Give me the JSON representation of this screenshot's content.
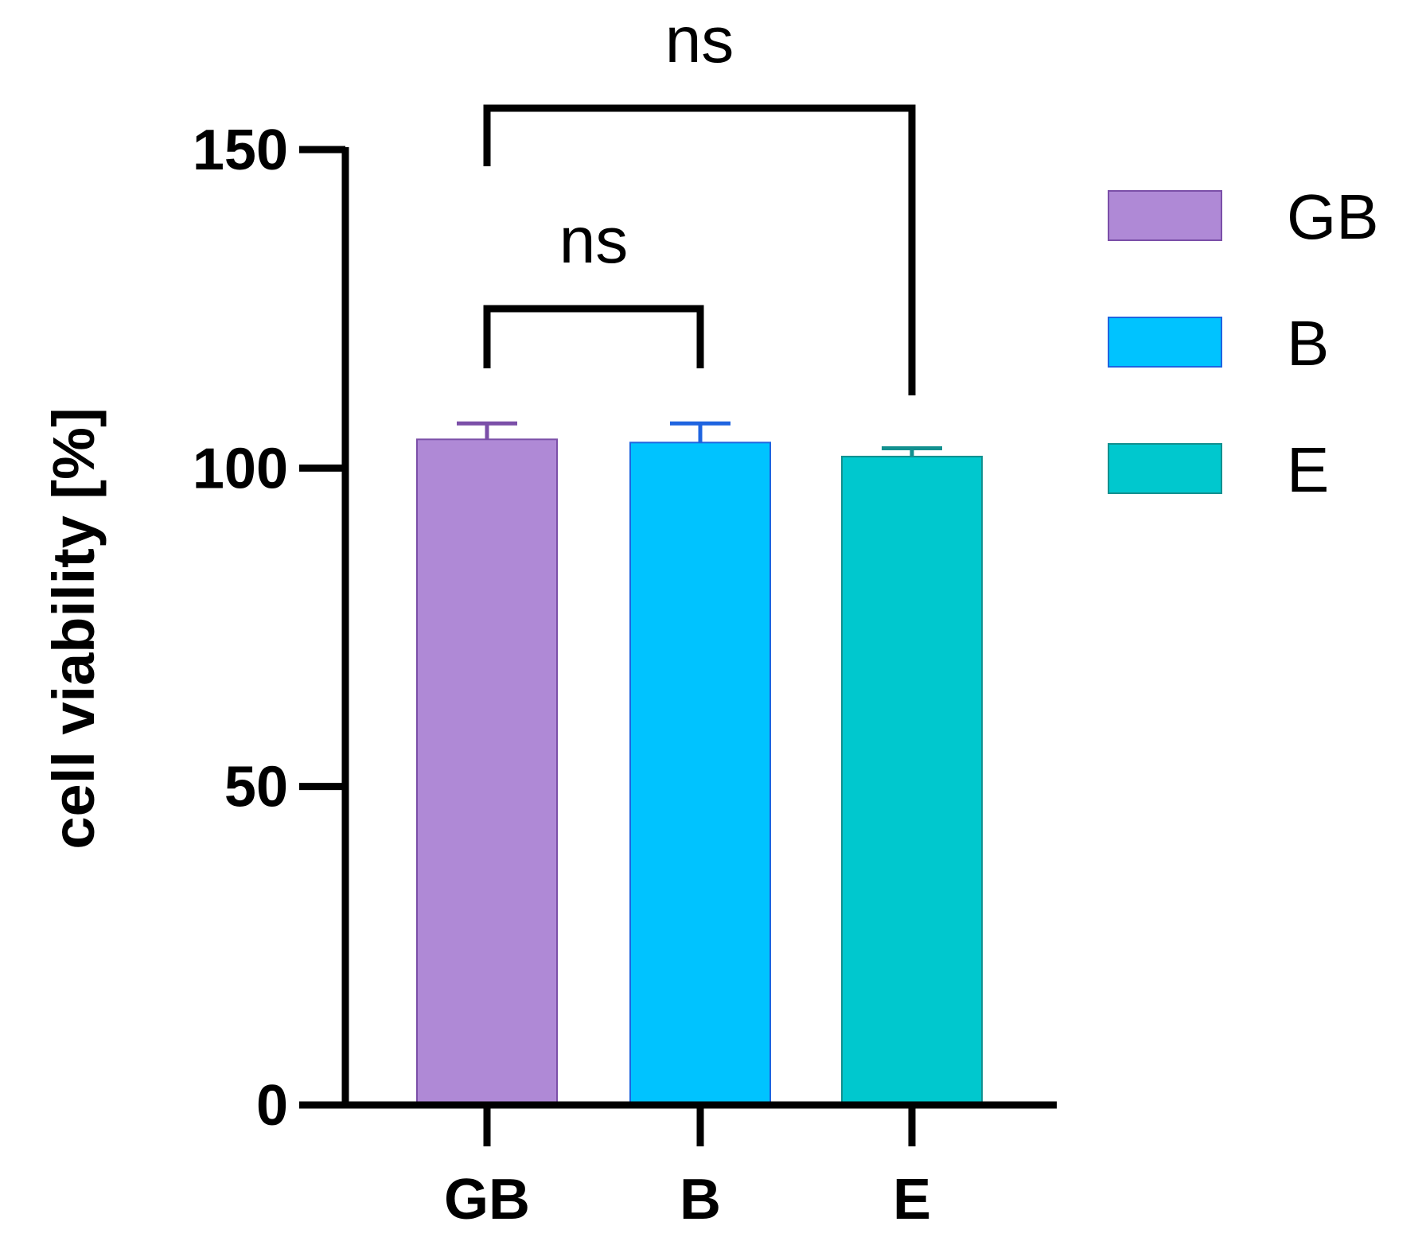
{
  "chart_data": {
    "type": "bar",
    "categories": [
      "GB",
      "B",
      "E"
    ],
    "values": [
      104.5,
      104.0,
      101.8
    ],
    "errors": [
      2.5,
      3.0,
      1.3
    ],
    "colors": [
      "#AF89D6",
      "#00C3FF",
      "#00C8CE"
    ],
    "edge_colors": [
      "#7B4FA8",
      "#1E64E0",
      "#12908F"
    ],
    "ylabel": "cell viability [%]",
    "xlabel": "",
    "ylim": [
      0,
      150
    ],
    "yticks": [
      0,
      50,
      100,
      150
    ],
    "grid": false,
    "legend": {
      "placement": "right",
      "entries": [
        "GB",
        "B",
        "E"
      ]
    },
    "comparisons": [
      {
        "from": "GB",
        "to": "B",
        "label": "ns"
      },
      {
        "from": "GB",
        "to": "E",
        "label": "ns"
      }
    ]
  }
}
